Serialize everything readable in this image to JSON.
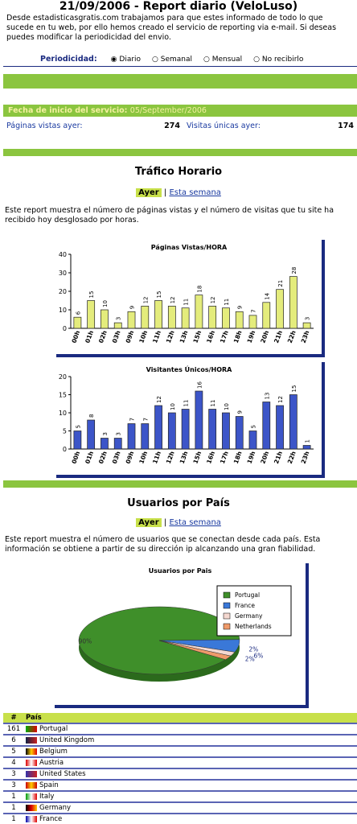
{
  "header": {
    "title": "21/09/2006 - Report diario (VeloLuso)",
    "intro": "Desde estadisticasgratis.com trabajamos para que estes informado de todo lo que sucede en tu web, por ello hemos creado el servicio de reporting via e-mail. Si deseas puedes modificar la periodicidad del envio."
  },
  "periodicity": {
    "label": "Periodicidad:",
    "options": [
      "Diario",
      "Semanal",
      "Mensual",
      "No recibirlo"
    ],
    "selected": 0
  },
  "service": {
    "start_label": "Fecha de inicio del servicio:",
    "start_date": "05/September/2006",
    "page_views_label": "Páginas vistas ayer:",
    "page_views": 274,
    "unique_label": "Visitas únicas ayer:",
    "unique": 174
  },
  "traffic": {
    "title": "Tráfico Horario",
    "tabs": [
      "Ayer",
      "Esta semana"
    ],
    "description": "Este report muestra el número de páginas vistas y el número de visitas que tu site ha recibido hoy desglosado por horas."
  },
  "chart_data": [
    {
      "type": "bar",
      "title": "Páginas Vistas/HORA",
      "color": "#e4ec7c",
      "categories": [
        "00h",
        "01h",
        "02h",
        "03h",
        "09h",
        "10h",
        "11h",
        "12h",
        "13h",
        "15h",
        "16h",
        "17h",
        "18h",
        "19h",
        "20h",
        "21h",
        "22h",
        "23h"
      ],
      "values": [
        6,
        15,
        10,
        3,
        9,
        12,
        15,
        12,
        11,
        18,
        12,
        11,
        9,
        7,
        14,
        21,
        28,
        3
      ],
      "ylim": [
        0,
        40
      ],
      "yticks": [
        0,
        10,
        20,
        30,
        40
      ]
    },
    {
      "type": "bar",
      "title": "Visitantes Únicos/HORA",
      "color": "#3c55c8",
      "categories": [
        "00h",
        "01h",
        "02h",
        "03h",
        "09h",
        "10h",
        "11h",
        "12h",
        "13h",
        "15h",
        "16h",
        "17h",
        "18h",
        "19h",
        "20h",
        "21h",
        "22h",
        "23h"
      ],
      "values": [
        5,
        8,
        3,
        3,
        7,
        7,
        12,
        10,
        11,
        16,
        11,
        10,
        9,
        5,
        13,
        12,
        15,
        1
      ],
      "ylim": [
        0,
        20
      ],
      "yticks": [
        0,
        5,
        10,
        15,
        20
      ]
    },
    {
      "type": "pie",
      "title": "Usuarios por Pais",
      "categories": [
        "Portugal",
        "France",
        "Germany",
        "Netherlands"
      ],
      "values": [
        90,
        6,
        2,
        2
      ],
      "value_labels": [
        "90%",
        "6%",
        "2%",
        "2%"
      ],
      "colors": [
        "#3f8f2a",
        "#3a78d8",
        "#f4d8d0",
        "#ef9a6a"
      ]
    }
  ],
  "countries": {
    "title": "Usuarios por País",
    "tabs": [
      "Ayer",
      "Esta semana"
    ],
    "description": "Este report muestra el número de usuarios que se conectan desde cada país. Esta información se obtiene a partir de su dirección ip alcanzando una gran fiabilidad.",
    "table": {
      "headers": [
        "#",
        "País"
      ],
      "rows": [
        [
          161,
          "Portugal"
        ],
        [
          6,
          "United Kingdom"
        ],
        [
          5,
          "Belgium"
        ],
        [
          4,
          "Austria"
        ],
        [
          3,
          "United States"
        ],
        [
          3,
          "Spain"
        ],
        [
          1,
          "Italy"
        ],
        [
          1,
          "Germany"
        ],
        [
          1,
          "France"
        ]
      ]
    }
  }
}
